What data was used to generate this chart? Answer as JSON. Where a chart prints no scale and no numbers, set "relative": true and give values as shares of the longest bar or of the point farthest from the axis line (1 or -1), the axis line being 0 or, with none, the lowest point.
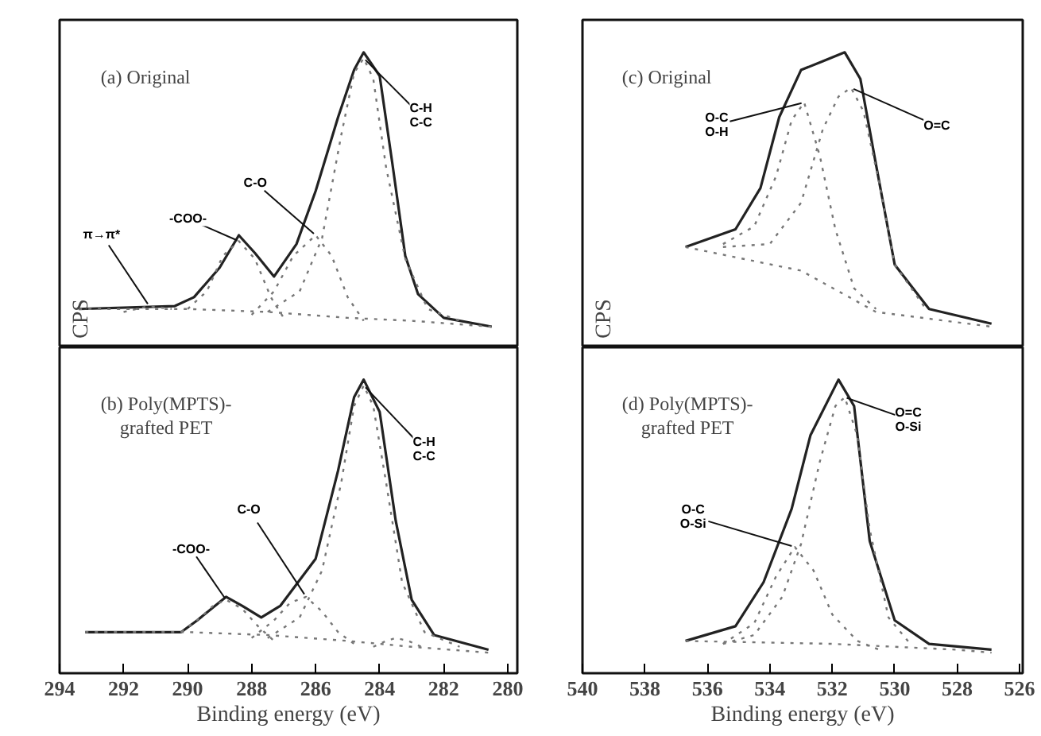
{
  "chart_data": [
    {
      "type": "line",
      "title": "(a) Original",
      "ylabel": "CPS",
      "relative": true,
      "xlim": [
        294,
        279.7
      ],
      "tick_labels": false,
      "grid": false,
      "series": [
        {
          "color": "#222222",
          "line_style": "solid",
          "x": [
            293.4,
            290.4,
            289.8,
            289.0,
            288.4,
            287.9,
            287.3,
            286.6,
            286.0,
            285.3,
            284.8,
            284.5,
            284.0,
            283.6,
            283.2,
            282.8,
            282.0,
            280.5
          ],
          "values": [
            0.13,
            0.14,
            0.17,
            0.27,
            0.38,
            0.32,
            0.24,
            0.35,
            0.53,
            0.78,
            0.94,
            1.0,
            0.92,
            0.62,
            0.31,
            0.18,
            0.1,
            0.07
          ]
        },
        {
          "color": "#777777",
          "line_style": "dotted",
          "x": [
            290.0,
            289.4,
            288.9,
            288.4,
            287.9,
            287.4,
            287.0
          ],
          "values": [
            0.13,
            0.19,
            0.31,
            0.36,
            0.3,
            0.17,
            0.1
          ]
        },
        {
          "color": "#777777",
          "line_style": "dotted",
          "x": [
            288.0,
            287.3,
            286.7,
            286.0,
            285.5,
            285.0,
            284.5
          ],
          "values": [
            0.11,
            0.19,
            0.31,
            0.38,
            0.31,
            0.17,
            0.09
          ]
        },
        {
          "color": "#777777",
          "line_style": "dotted",
          "x": [
            287.5,
            286.5,
            285.8,
            285.2,
            284.8,
            284.5,
            284.2,
            283.8,
            283.2,
            282.5,
            281.5
          ],
          "values": [
            0.12,
            0.19,
            0.37,
            0.72,
            0.93,
            0.98,
            0.91,
            0.61,
            0.3,
            0.13,
            0.09
          ]
        },
        {
          "color": "#777777",
          "line_style": "dotted",
          "x": [
            292.0,
            291.2,
            290.5
          ],
          "values": [
            0.12,
            0.14,
            0.13
          ]
        },
        {
          "color": "#777777",
          "line_style": "dotted",
          "x": [
            293.4,
            290.0,
            287.5,
            285.0,
            283.0,
            280.5
          ],
          "values": [
            0.13,
            0.13,
            0.12,
            0.1,
            0.09,
            0.07
          ]
        }
      ],
      "annotations": [
        {
          "text": "π→π*",
          "x": 291.2,
          "y": 0.14
        },
        {
          "text": "-COO-",
          "x": 288.4,
          "y": 0.36
        },
        {
          "text": "C-O",
          "x": 286.0,
          "y": 0.38
        },
        {
          "text": "C-H\nC-C",
          "x": 284.5,
          "y": 0.98
        }
      ]
    },
    {
      "type": "line",
      "title": "(b) Poly(MPTS)-\ngrafted PET",
      "xlabel": "Binding energy (eV)",
      "relative": true,
      "xlim": [
        294,
        279.7
      ],
      "xticks": [
        294,
        292,
        290,
        288,
        286,
        284,
        282,
        280
      ],
      "tick_labels": "x",
      "grid": false,
      "series": [
        {
          "color": "#222222",
          "line_style": "solid",
          "x": [
            293.2,
            290.2,
            289.7,
            288.8,
            288.3,
            287.7,
            287.1,
            286.0,
            285.3,
            284.8,
            284.5,
            284.0,
            283.5,
            283.0,
            282.3,
            280.6
          ],
          "values": [
            0.14,
            0.14,
            0.18,
            0.26,
            0.23,
            0.19,
            0.23,
            0.39,
            0.69,
            0.94,
            1.0,
            0.89,
            0.52,
            0.25,
            0.13,
            0.08
          ]
        },
        {
          "color": "#777777",
          "line_style": "dotted",
          "x": [
            290.2,
            289.6,
            289.2,
            288.8,
            288.3,
            287.8,
            287.3
          ],
          "values": [
            0.14,
            0.19,
            0.23,
            0.25,
            0.22,
            0.16,
            0.11
          ]
        },
        {
          "color": "#777777",
          "line_style": "dotted",
          "x": [
            288.0,
            287.3,
            286.8,
            286.3,
            285.8,
            285.3,
            284.8
          ],
          "values": [
            0.12,
            0.18,
            0.24,
            0.26,
            0.21,
            0.14,
            0.1
          ]
        },
        {
          "color": "#777777",
          "line_style": "dotted",
          "x": [
            287.5,
            286.5,
            285.8,
            285.2,
            284.8,
            284.5,
            284.2,
            283.8,
            283.3,
            282.6,
            281.5
          ],
          "values": [
            0.12,
            0.19,
            0.35,
            0.65,
            0.91,
            0.98,
            0.91,
            0.65,
            0.31,
            0.14,
            0.09
          ]
        },
        {
          "color": "#777777",
          "line_style": "dotted",
          "x": [
            284.2,
            283.8,
            283.5,
            283.1,
            282.7
          ],
          "values": [
            0.09,
            0.11,
            0.12,
            0.11,
            0.09
          ]
        },
        {
          "color": "#777777",
          "line_style": "dotted",
          "x": [
            293.2,
            290.0,
            287.5,
            285.0,
            283.0,
            280.6
          ],
          "values": [
            0.14,
            0.14,
            0.13,
            0.11,
            0.09,
            0.07
          ]
        }
      ],
      "annotations": [
        {
          "text": "-COO-",
          "x": 288.8,
          "y": 0.25
        },
        {
          "text": "C-O",
          "x": 286.3,
          "y": 0.26
        },
        {
          "text": "C-H\nC-C",
          "x": 284.5,
          "y": 0.98
        }
      ]
    },
    {
      "type": "line",
      "title": "(c) Original",
      "ylabel": "CPS",
      "relative": true,
      "xlim": [
        540,
        525.9
      ],
      "tick_labels": false,
      "grid": false,
      "series": [
        {
          "color": "#222222",
          "line_style": "solid",
          "x": [
            536.7,
            535.1,
            534.3,
            533.7,
            533.0,
            532.3,
            531.6,
            531.1,
            530.6,
            530.0,
            528.9,
            526.9
          ],
          "values": [
            0.34,
            0.4,
            0.54,
            0.78,
            0.94,
            0.97,
            1.0,
            0.91,
            0.62,
            0.28,
            0.13,
            0.08
          ]
        },
        {
          "color": "#777777",
          "line_style": "dotted",
          "x": [
            535.5,
            534.5,
            533.8,
            533.3,
            532.9,
            532.4,
            531.9,
            531.3,
            530.6
          ],
          "values": [
            0.35,
            0.41,
            0.58,
            0.77,
            0.83,
            0.65,
            0.4,
            0.2,
            0.13
          ]
        },
        {
          "color": "#777777",
          "line_style": "dotted",
          "x": [
            535.5,
            534.0,
            533.0,
            532.3,
            531.8,
            531.4,
            531.0,
            530.5,
            530.0,
            529.0
          ],
          "values": [
            0.34,
            0.35,
            0.49,
            0.74,
            0.85,
            0.88,
            0.8,
            0.56,
            0.28,
            0.13
          ]
        },
        {
          "color": "#777777",
          "line_style": "dotted",
          "x": [
            536.7,
            533.0,
            530.6,
            526.9
          ],
          "values": [
            0.34,
            0.26,
            0.12,
            0.07
          ]
        }
      ],
      "annotations": [
        {
          "text": "O-C\nO-H",
          "x": 532.9,
          "y": 0.83
        },
        {
          "text": "O=C",
          "x": 531.4,
          "y": 0.88
        }
      ]
    },
    {
      "type": "line",
      "title": "(d) Poly(MPTS)-\ngrafted PET",
      "xlabel": "Binding energy (eV)",
      "relative": true,
      "xlim": [
        540,
        525.9
      ],
      "xticks": [
        540,
        538,
        536,
        534,
        532,
        530,
        528,
        526
      ],
      "tick_labels": "x",
      "grid": false,
      "series": [
        {
          "color": "#222222",
          "line_style": "solid",
          "x": [
            536.7,
            535.1,
            534.2,
            533.3,
            532.7,
            531.8,
            531.3,
            530.8,
            530.0,
            528.9,
            526.9
          ],
          "values": [
            0.11,
            0.16,
            0.31,
            0.56,
            0.81,
            1.0,
            0.91,
            0.45,
            0.18,
            0.1,
            0.08
          ]
        },
        {
          "color": "#777777",
          "line_style": "dotted",
          "x": [
            535.5,
            534.5,
            533.8,
            533.2,
            532.6,
            532.0,
            531.2,
            530.5
          ],
          "values": [
            0.1,
            0.17,
            0.33,
            0.43,
            0.35,
            0.2,
            0.11,
            0.08
          ]
        },
        {
          "color": "#777777",
          "line_style": "dotted",
          "x": [
            535.5,
            534.5,
            533.6,
            533.0,
            532.4,
            531.9,
            531.6,
            531.2,
            530.8,
            530.2,
            529.5
          ],
          "values": [
            0.1,
            0.13,
            0.26,
            0.44,
            0.72,
            0.91,
            0.94,
            0.81,
            0.49,
            0.19,
            0.1
          ]
        },
        {
          "color": "#777777",
          "line_style": "dotted",
          "x": [
            536.7,
            532.0,
            528.0,
            526.9
          ],
          "values": [
            0.11,
            0.1,
            0.08,
            0.07
          ]
        }
      ],
      "annotations": [
        {
          "text": "O-C\nO-Si",
          "x": 533.2,
          "y": 0.43
        },
        {
          "text": "O=C\nO-Si",
          "x": 531.6,
          "y": 0.94
        }
      ]
    }
  ]
}
